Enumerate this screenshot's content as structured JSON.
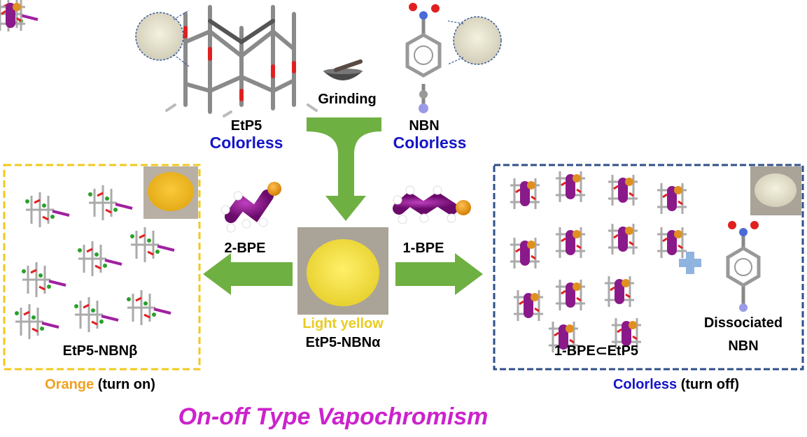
{
  "top": {
    "grinding": "Grinding",
    "left_compound": "EtP5",
    "left_color": "Colorless",
    "right_compound": "NBN",
    "right_color": "Colorless"
  },
  "center": {
    "color": "Light yellow",
    "compound": "EtP5-NBNα"
  },
  "left": {
    "vapor": "2-BPE",
    "compound": "EtP5-NBNβ",
    "color": "Orange",
    "state": "(turn on)"
  },
  "right": {
    "vapor": "1-BPE",
    "complex": "1-BPE⊂EtP5",
    "dissociated_line1": "Dissociated",
    "dissociated_line2": "NBN",
    "color": "Colorless",
    "state": "(turn off)"
  },
  "title": "On-off Type Vapochromism",
  "colors": {
    "arrow": "#6fb043",
    "yellow_box": "#f2c81e",
    "blue_box": "#2f4f8a",
    "orange_text": "#f0a020",
    "light_yellow_text": "#e8cc22",
    "blue_text": "#1414c8",
    "title": "#cc22cc",
    "plus": "#8fb4e0"
  }
}
